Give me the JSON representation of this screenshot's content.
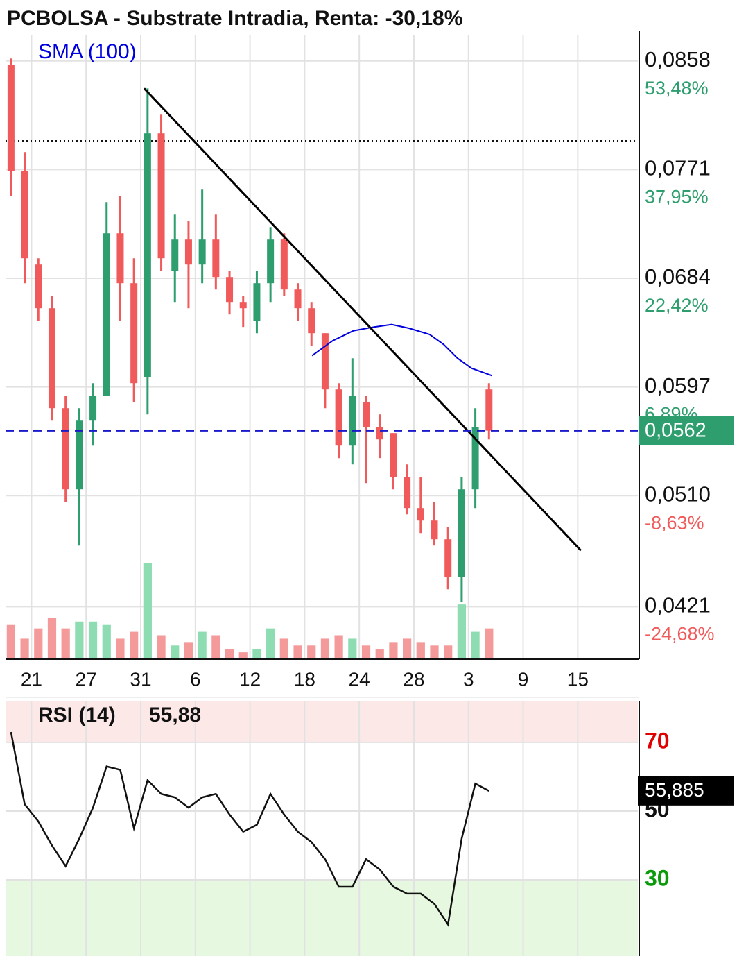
{
  "title": "PCBOLSA - Substrate Intradia, Renta: -30,18%",
  "chart_data": [
    {
      "type": "candlestick",
      "indicator_label": "SMA (100)",
      "sma_color": "#0000dd",
      "up_color": "#2e9e6e",
      "down_color": "#f05a5a",
      "volume_up_color": "#8ddcb2",
      "volume_down_color": "#f59a9a",
      "grid": true,
      "xlim": [
        0.1,
        46.4
      ],
      "xticks": [
        {
          "value": 2,
          "label": "21"
        },
        {
          "value": 6,
          "label": "27"
        },
        {
          "value": 10,
          "label": "31"
        },
        {
          "value": 14,
          "label": "6"
        },
        {
          "value": 18,
          "label": "12"
        },
        {
          "value": 22,
          "label": "18"
        },
        {
          "value": 26,
          "label": "24"
        },
        {
          "value": 30,
          "label": "28"
        },
        {
          "value": 34,
          "label": "3"
        },
        {
          "value": 38,
          "label": "9"
        },
        {
          "value": 42,
          "label": "15"
        }
      ],
      "ylim": [
        0.0379,
        0.0879
      ],
      "yticks": [
        {
          "value": 0.0858,
          "label": "0,0858",
          "change": "53,48%"
        },
        {
          "value": 0.0771,
          "label": "0,0771",
          "change": "37,95%"
        },
        {
          "value": 0.0684,
          "label": "0,0684",
          "change": "22,42%"
        },
        {
          "value": 0.0597,
          "label": "0,0597",
          "change": "6,89%"
        },
        {
          "value": 0.051,
          "label": "0,0510",
          "change": "-8,63%"
        },
        {
          "value": 0.0421,
          "label": "0,0421",
          "change": "-24,68%"
        }
      ],
      "current": {
        "value": 0.0562,
        "label": "0,0562"
      },
      "reference_level": 0.0794,
      "x": [
        0.5,
        1.5,
        2.5,
        3.5,
        4.5,
        5.5,
        6.5,
        7.5,
        8.5,
        9.5,
        10.5,
        11.5,
        12.5,
        13.5,
        14.5,
        15.5,
        16.5,
        17.5,
        18.5,
        19.5,
        20.5,
        21.5,
        22.5,
        23.5,
        24.5,
        25.5,
        26.5,
        27.5,
        28.5,
        29.5,
        30.5,
        31.5,
        32.5,
        33.5,
        34.5,
        35.5
      ],
      "open": [
        0.0855,
        0.077,
        0.0695,
        0.066,
        0.058,
        0.0515,
        0.057,
        0.059,
        0.072,
        0.068,
        0.0605,
        0.08,
        0.069,
        0.0715,
        0.0695,
        0.0715,
        0.0685,
        0.0665,
        0.065,
        0.068,
        0.0715,
        0.0675,
        0.066,
        0.064,
        0.0595,
        0.055,
        0.0585,
        0.0565,
        0.056,
        0.0525,
        0.05,
        0.049,
        0.0475,
        0.0445,
        0.0515,
        0.0595
      ],
      "high": [
        0.086,
        0.0785,
        0.07,
        0.067,
        0.059,
        0.058,
        0.06,
        0.0745,
        0.075,
        0.07,
        0.0836,
        0.0815,
        0.0735,
        0.073,
        0.0755,
        0.0735,
        0.069,
        0.067,
        0.069,
        0.0725,
        0.072,
        0.068,
        0.0665,
        0.064,
        0.06,
        0.062,
        0.059,
        0.0575,
        0.056,
        0.0535,
        0.0525,
        0.0505,
        0.0485,
        0.0525,
        0.058,
        0.06
      ],
      "low": [
        0.075,
        0.068,
        0.065,
        0.057,
        0.0505,
        0.047,
        0.055,
        0.059,
        0.065,
        0.0585,
        0.0575,
        0.069,
        0.0665,
        0.066,
        0.068,
        0.0675,
        0.0655,
        0.0645,
        0.064,
        0.0665,
        0.067,
        0.065,
        0.063,
        0.058,
        0.054,
        0.0535,
        0.052,
        0.054,
        0.0515,
        0.0495,
        0.048,
        0.047,
        0.0435,
        0.0425,
        0.05,
        0.0555
      ],
      "close": [
        0.077,
        0.07,
        0.066,
        0.058,
        0.0515,
        0.057,
        0.059,
        0.072,
        0.068,
        0.06,
        0.08,
        0.07,
        0.0715,
        0.0695,
        0.0715,
        0.0685,
        0.0665,
        0.066,
        0.068,
        0.0715,
        0.0675,
        0.066,
        0.064,
        0.0595,
        0.055,
        0.059,
        0.0565,
        0.0555,
        0.0525,
        0.05,
        0.049,
        0.0475,
        0.0445,
        0.0515,
        0.0565,
        0.0562
      ],
      "volumes": [
        50,
        30,
        45,
        60,
        45,
        55,
        55,
        50,
        30,
        40,
        140,
        35,
        20,
        25,
        40,
        35,
        15,
        10,
        15,
        45,
        30,
        20,
        20,
        30,
        35,
        30,
        20,
        15,
        25,
        30,
        25,
        20,
        20,
        80,
        40,
        45
      ],
      "sma": {
        "x": [
          22.54,
          24.06,
          25.58,
          27.1,
          28.37,
          29.64,
          31.16,
          32.18,
          33.19,
          34.21,
          35.73
        ],
        "values": [
          0.0622,
          0.0634,
          0.0642,
          0.0645,
          0.0647,
          0.0644,
          0.0639,
          0.0631,
          0.062,
          0.0612,
          0.0606
        ]
      },
      "trendline": {
        "x": [
          10.25,
          42.23
        ],
        "y": [
          0.0836,
          0.0466
        ]
      }
    },
    {
      "type": "line",
      "label": "RSI (14)",
      "value_label": "55,88",
      "last": {
        "value": 55.885,
        "label": "55,885"
      },
      "color": "#111111",
      "ylim": [
        7.8,
        82.1
      ],
      "yticks": [
        70,
        50,
        30
      ],
      "tick_colors": [
        "#e00000",
        "#111111",
        "#0a9a0a"
      ],
      "zone_colors": [
        "#fde8e8",
        "#e6f8e0"
      ],
      "x": [
        0.5,
        1.5,
        2.5,
        3.5,
        4.5,
        5.5,
        6.5,
        7.5,
        8.5,
        9.5,
        10.5,
        11.5,
        12.5,
        13.5,
        14.5,
        15.5,
        16.5,
        17.5,
        18.5,
        19.5,
        20.5,
        21.5,
        22.5,
        23.5,
        24.5,
        25.5,
        26.5,
        27.5,
        28.5,
        29.5,
        30.5,
        31.5,
        32.5,
        33.5,
        34.5,
        35.5
      ],
      "values": [
        73,
        52,
        47,
        40,
        34,
        42,
        51,
        63,
        62,
        45,
        59,
        55,
        54,
        51,
        54,
        55,
        49,
        44,
        46,
        55,
        49,
        44,
        41,
        36,
        28,
        28,
        36,
        33,
        28,
        26,
        26,
        23,
        17,
        42,
        58,
        55.885
      ]
    }
  ]
}
